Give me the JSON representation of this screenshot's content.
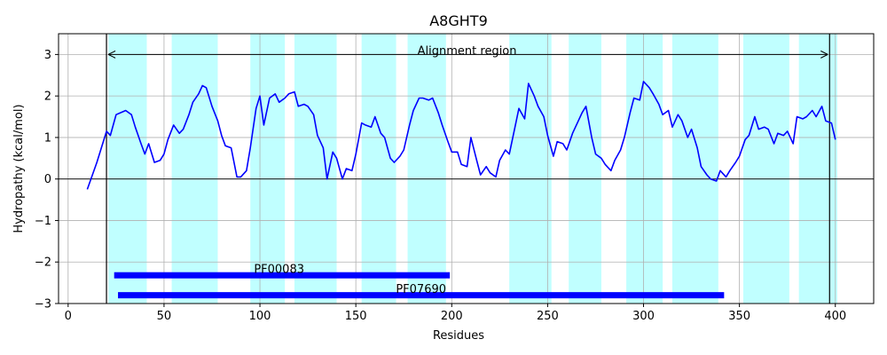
{
  "chart_data": {
    "type": "line",
    "title": "A8GHT9",
    "xlabel": "Residues",
    "ylabel": "Hydropathy (kcal/mol)",
    "xlim": [
      -5,
      420
    ],
    "ylim": [
      -3,
      3.5
    ],
    "xticks": [
      0,
      50,
      100,
      150,
      200,
      250,
      300,
      350,
      400
    ],
    "yticks": [
      -3,
      -2,
      -1,
      0,
      1,
      2,
      3
    ],
    "grid": true,
    "line_color": "#0000ff",
    "highlight_color": "#c0ffff",
    "bar_color": "#0000ff",
    "series": [
      {
        "x": [
          10,
          15,
          20,
          22,
          25,
          30,
          33,
          35,
          38,
          40,
          42,
          45,
          48,
          50,
          52,
          55,
          58,
          60,
          63,
          65,
          68,
          70,
          72,
          75,
          78,
          80,
          82,
          85,
          88,
          90,
          93,
          95,
          98,
          100,
          102,
          105,
          108,
          110,
          113,
          115,
          118,
          120,
          123,
          125,
          128,
          130,
          133,
          135,
          138,
          140,
          143,
          145,
          148,
          150,
          153,
          155,
          158,
          160,
          163,
          165,
          168,
          170,
          173,
          175,
          178,
          180,
          183,
          185,
          188,
          190,
          193,
          195,
          198,
          200,
          203,
          205,
          208,
          210,
          213,
          215,
          218,
          220,
          223,
          225,
          228,
          230,
          233,
          235,
          238,
          240,
          243,
          245,
          248,
          250,
          253,
          255,
          258,
          260,
          263,
          265,
          268,
          270,
          273,
          275,
          278,
          280,
          283,
          285,
          288,
          290,
          293,
          295,
          298,
          300,
          303,
          305,
          308,
          310,
          313,
          315,
          318,
          320,
          323,
          325,
          328,
          330,
          333,
          335,
          338,
          340,
          343,
          345,
          348,
          350,
          353,
          355,
          358,
          360,
          363,
          365,
          368,
          370,
          373,
          375,
          378,
          380,
          383,
          385,
          388,
          390,
          393,
          395,
          398,
          400
        ],
        "y": [
          -0.25,
          0.4,
          1.15,
          1.05,
          1.55,
          1.65,
          1.55,
          1.25,
          0.85,
          0.6,
          0.85,
          0.4,
          0.45,
          0.6,
          0.95,
          1.3,
          1.1,
          1.2,
          1.55,
          1.85,
          2.05,
          2.25,
          2.2,
          1.75,
          1.4,
          1.05,
          0.8,
          0.75,
          0.05,
          0.05,
          0.2,
          0.75,
          1.7,
          2.0,
          1.3,
          1.95,
          2.05,
          1.85,
          1.95,
          2.05,
          2.1,
          1.75,
          1.8,
          1.75,
          1.55,
          1.05,
          0.75,
          0.0,
          0.65,
          0.5,
          0.0,
          0.25,
          0.2,
          0.6,
          1.35,
          1.3,
          1.25,
          1.5,
          1.1,
          1.0,
          0.5,
          0.4,
          0.55,
          0.7,
          1.3,
          1.65,
          1.95,
          1.95,
          1.9,
          1.95,
          1.6,
          1.3,
          0.9,
          0.65,
          0.65,
          0.35,
          0.3,
          1.0,
          0.45,
          0.1,
          0.3,
          0.15,
          0.05,
          0.45,
          0.7,
          0.6,
          1.25,
          1.7,
          1.45,
          2.3,
          2.0,
          1.75,
          1.5,
          1.05,
          0.55,
          0.9,
          0.85,
          0.7,
          1.1,
          1.3,
          1.6,
          1.75,
          1.0,
          0.6,
          0.5,
          0.35,
          0.2,
          0.45,
          0.7,
          1.0,
          1.6,
          1.95,
          1.9,
          2.35,
          2.2,
          2.05,
          1.8,
          1.55,
          1.65,
          1.25,
          1.55,
          1.4,
          1.0,
          1.2,
          0.75,
          0.3,
          0.1,
          0.0,
          -0.05,
          0.2,
          0.05,
          0.2,
          0.4,
          0.55,
          0.95,
          1.05,
          1.5,
          1.2,
          1.25,
          1.2,
          0.85,
          1.1,
          1.05,
          1.15,
          0.85,
          1.5,
          1.45,
          1.5,
          1.65,
          1.5,
          1.75,
          1.4,
          1.35,
          0.95
        ]
      }
    ],
    "highlights": [
      [
        21,
        41
      ],
      [
        54,
        78
      ],
      [
        95,
        113
      ],
      [
        118,
        140
      ],
      [
        153,
        171
      ],
      [
        177,
        197
      ],
      [
        230,
        252
      ],
      [
        261,
        278
      ],
      [
        291,
        310
      ],
      [
        315,
        339
      ],
      [
        352,
        376
      ],
      [
        381,
        401
      ]
    ],
    "vlines": [
      20,
      397
    ],
    "annotations": [
      {
        "text": "Alignment region",
        "x_start": 20,
        "x_end": 397,
        "y": 3.0,
        "label_x": 208,
        "label_y": 3.1
      }
    ],
    "domains": [
      {
        "name": "PF00083",
        "start": 24,
        "end": 199,
        "y": -2.32,
        "label_x": 110,
        "label_y": -2.18
      },
      {
        "name": "PF07690",
        "start": 26,
        "end": 342,
        "y": -2.8,
        "label_x": 184,
        "label_y": -2.66
      }
    ]
  }
}
